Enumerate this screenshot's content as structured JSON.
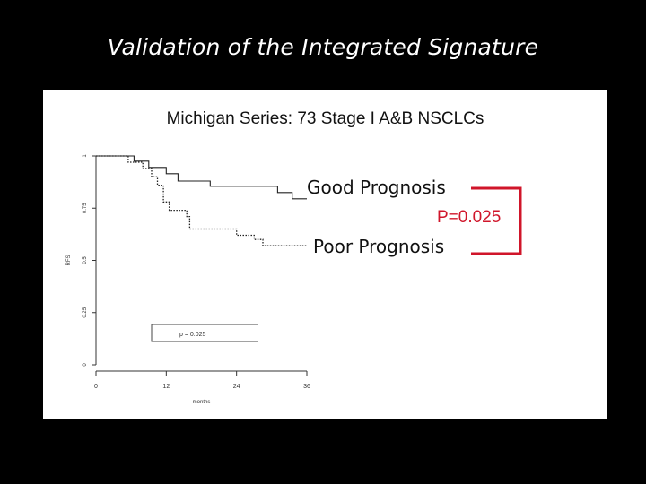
{
  "slide": {
    "title": "Validation of the Integrated Signature"
  },
  "chart_data": {
    "type": "line",
    "title": "Michigan Series: 73 Stage I A&B NSCLCs",
    "xlabel": "months",
    "ylabel": "RFS",
    "xlim": [
      0,
      36
    ],
    "ylim": [
      0,
      1
    ],
    "xticks": [
      "0",
      "12",
      "24",
      "36"
    ],
    "yticks": [
      "0",
      "0.25",
      "0.5",
      "0.75",
      "1"
    ],
    "legend_text": "p = 0.025",
    "series": [
      {
        "name": "Good Prognosis",
        "style": "solid",
        "x": [
          0,
          6.5,
          6.5,
          9.0,
          9.0,
          12.0,
          12.0,
          14.0,
          14.0,
          19.5,
          19.5,
          31.0,
          31.0,
          33.5,
          33.5,
          36.0
        ],
        "y": [
          1.0,
          1.0,
          0.975,
          0.975,
          0.945,
          0.945,
          0.915,
          0.915,
          0.88,
          0.88,
          0.855,
          0.855,
          0.825,
          0.825,
          0.795,
          0.795
        ]
      },
      {
        "name": "Poor Prognosis",
        "style": "dotted",
        "x": [
          0,
          5.5,
          5.5,
          8.0,
          8.0,
          9.5,
          9.5,
          10.5,
          10.5,
          11.5,
          11.5,
          12.5,
          12.5,
          15.5,
          15.5,
          16.0,
          16.0,
          24.0,
          24.0,
          27.0,
          27.0,
          28.5,
          28.5,
          36.0
        ],
        "y": [
          1.0,
          1.0,
          0.97,
          0.97,
          0.94,
          0.94,
          0.9,
          0.9,
          0.86,
          0.86,
          0.78,
          0.78,
          0.74,
          0.74,
          0.71,
          0.71,
          0.65,
          0.65,
          0.62,
          0.62,
          0.6,
          0.6,
          0.57,
          0.57
        ]
      }
    ],
    "annotations": {
      "good_label": "Good Prognosis",
      "poor_label": "Poor Prognosis",
      "pvalue_label": "P=0.025",
      "bracket_color": "#d0152a"
    },
    "grid": false
  }
}
